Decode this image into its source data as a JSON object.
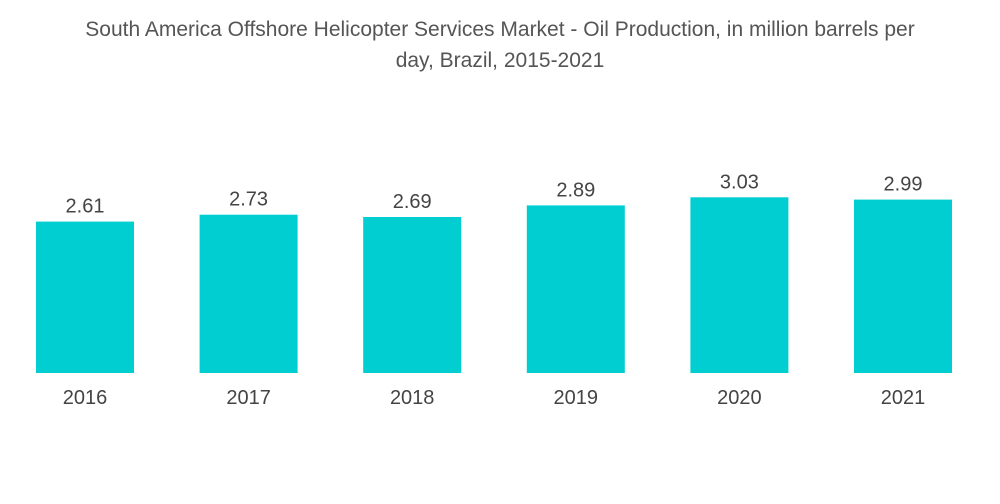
{
  "chart_data": {
    "type": "bar",
    "title": "South America Offshore Helicopter Services Market - Oil Production, in million barrels per day, Brazil, 2015-2021",
    "title_lines": [
      "South America Offshore Helicopter Services Market - Oil Production, in million barrels per",
      "day, Brazil, 2015-2021"
    ],
    "categories": [
      "2016",
      "2017",
      "2018",
      "2019",
      "2020",
      "2021"
    ],
    "values": [
      2.61,
      2.73,
      2.69,
      2.89,
      3.03,
      2.99
    ],
    "value_labels": [
      "2.61",
      "2.73",
      "2.69",
      "2.89",
      "3.03",
      "2.99"
    ],
    "xlabel": "",
    "ylabel": "",
    "ylim": [
      0,
      3.6
    ],
    "grid": false,
    "legend": "none",
    "bar_color": "#00CED1"
  }
}
